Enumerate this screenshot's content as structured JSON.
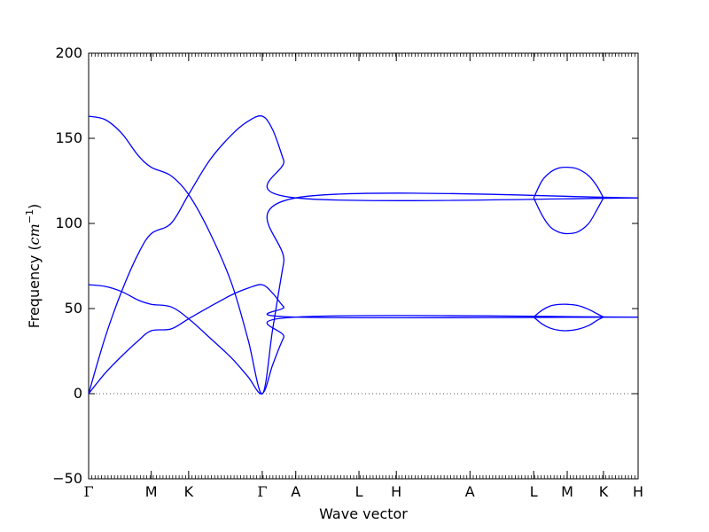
{
  "chart_data": {
    "type": "line",
    "title": "",
    "xlabel": "Wave vector",
    "ylabel": {
      "prefix": "Frequency (",
      "unit_base": "cm",
      "unit_exp": "−1",
      "suffix": ")"
    },
    "ylim": [
      -50,
      200
    ],
    "yticks": [
      {
        "value": 200,
        "label": "200"
      },
      {
        "value": 150,
        "label": "150"
      },
      {
        "value": 100,
        "label": "100"
      },
      {
        "value": 50,
        "label": "50"
      },
      {
        "value": 0,
        "label": "0"
      },
      {
        "value": -50,
        "label": "−50"
      }
    ],
    "xlim": [
      0,
      1
    ],
    "qpoints": [
      {
        "x": 0.0,
        "label": "Γ"
      },
      {
        "x": 0.114,
        "label": "M"
      },
      {
        "x": 0.182,
        "label": "K"
      },
      {
        "x": 0.316,
        "label": "Γ"
      },
      {
        "x": 0.377,
        "label": "A"
      },
      {
        "x": 0.492,
        "label": "L"
      },
      {
        "x": 0.56,
        "label": "H"
      },
      {
        "x": 0.694,
        "label": "A"
      },
      {
        "x": 0.81,
        "label": "L"
      },
      {
        "x": 0.871,
        "label": "M"
      },
      {
        "x": 0.937,
        "label": "K"
      },
      {
        "x": 1.0,
        "label": "H"
      }
    ],
    "zero_line": true,
    "line_color": "#0000ff",
    "series": [
      {
        "x": [
          0,
          0.03,
          0.06,
          0.09,
          0.114,
          0.15,
          0.182,
          0.22,
          0.26,
          0.29,
          0.316,
          0.335,
          0.355,
          0.377,
          1.0
        ],
        "y": [
          0,
          12,
          22,
          31,
          37,
          38,
          44,
          51,
          58,
          62,
          64,
          59,
          51,
          45,
          45
        ]
      },
      {
        "x": [
          0,
          0.03,
          0.06,
          0.09,
          0.114,
          0.15,
          0.182,
          0.22,
          0.26,
          0.29,
          0.316,
          0.335,
          0.355,
          0.377,
          1.0
        ],
        "y": [
          64,
          63,
          60,
          55,
          52.5,
          51,
          44,
          33,
          21,
          10,
          0,
          17,
          33,
          45,
          45
        ]
      },
      {
        "x": [
          0,
          0.03,
          0.06,
          0.09,
          0.114,
          0.15,
          0.182,
          0.22,
          0.26,
          0.29,
          0.316,
          0.335,
          0.355,
          0.377,
          1.0
        ],
        "y": [
          0,
          33,
          60,
          82,
          94,
          100,
          117,
          137,
          152,
          160,
          163,
          155,
          137,
          115,
          115
        ]
      },
      {
        "x": [
          0,
          0.03,
          0.06,
          0.09,
          0.114,
          0.15,
          0.182,
          0.22,
          0.26,
          0.29,
          0.316,
          0.335,
          0.355,
          0.377,
          1.0
        ],
        "y": [
          163,
          161,
          153,
          140,
          133,
          128,
          117,
          95,
          65,
          32,
          0,
          38,
          77,
          115,
          115
        ]
      },
      {
        "x": [
          0.81,
          0.825,
          0.84,
          0.855,
          0.871,
          0.89,
          0.91,
          0.925,
          0.937
        ],
        "y": [
          45,
          41,
          38.5,
          37.3,
          37,
          37.8,
          40,
          43,
          45
        ]
      },
      {
        "x": [
          0.81,
          0.825,
          0.84,
          0.855,
          0.871,
          0.89,
          0.91,
          0.925,
          0.937
        ],
        "y": [
          45,
          49,
          51.5,
          52.4,
          52.5,
          51.8,
          49.5,
          47,
          45
        ]
      },
      {
        "x": [
          0.81,
          0.825,
          0.84,
          0.855,
          0.871,
          0.89,
          0.91,
          0.925,
          0.937
        ],
        "y": [
          115,
          105,
          98,
          95,
          94,
          95,
          100,
          108,
          115
        ]
      },
      {
        "x": [
          0.81,
          0.825,
          0.84,
          0.855,
          0.871,
          0.89,
          0.91,
          0.925,
          0.937
        ],
        "y": [
          115,
          125,
          130,
          132.5,
          133,
          132,
          128,
          122,
          115
        ]
      }
    ]
  }
}
